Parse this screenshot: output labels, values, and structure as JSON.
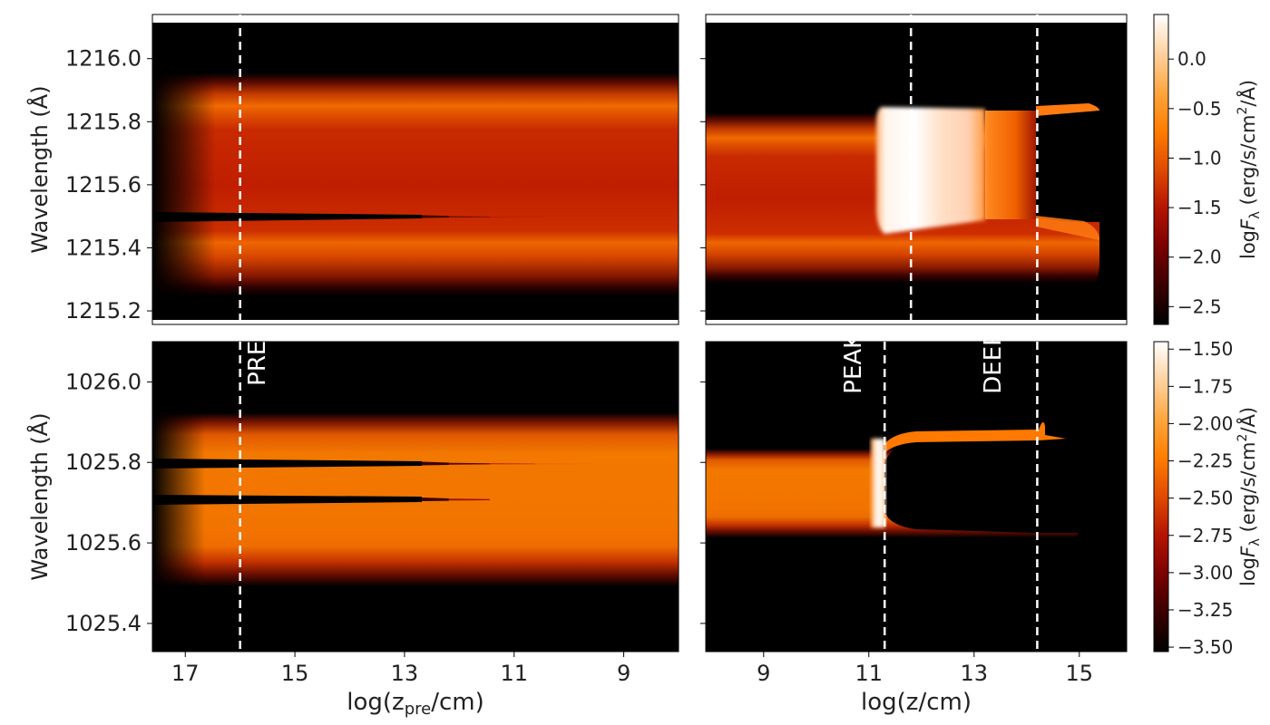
{
  "chart_data": [
    {
      "type": "heatmap",
      "panel": "top-left",
      "xlabel_main": "log(z",
      "xlabel_sub": "pre",
      "xlabel_end": "/cm)",
      "ylabel": "Wavelength (Å)",
      "xlim": [
        17.6,
        8.0
      ],
      "ylim": [
        1215.157,
        1216.14
      ],
      "yticks": [
        1215.2,
        1215.4,
        1215.6,
        1215.8,
        1216.0
      ],
      "ytick_labels": [
        "1215.2",
        "1215.4",
        "1215.6",
        "1215.8",
        "1216.0"
      ],
      "vlines": [
        16.0
      ],
      "annotations": []
    },
    {
      "type": "heatmap",
      "panel": "top-right",
      "xlabel": "log(z/cm)",
      "xlim": [
        7.9,
        15.9
      ],
      "ylim": [
        1215.157,
        1216.14
      ],
      "vlines": [
        11.8,
        14.2
      ],
      "annotations": []
    },
    {
      "type": "heatmap",
      "panel": "bottom-left",
      "xlabel_main": "log(z",
      "xlabel_sub": "pre",
      "xlabel_end": "/cm)",
      "ylabel": "Wavelength (Å)",
      "xlim": [
        17.6,
        8.0
      ],
      "ylim": [
        1025.33,
        1026.1
      ],
      "xticks": [
        17,
        15,
        13,
        11,
        9
      ],
      "xtick_labels": [
        "17",
        "15",
        "13",
        "11",
        "9"
      ],
      "yticks": [
        1025.4,
        1025.6,
        1025.8,
        1026.0
      ],
      "ytick_labels": [
        "1025.4",
        "1025.6",
        "1025.8",
        "1026.0"
      ],
      "vlines": [
        16.0
      ],
      "annotations": [
        {
          "text": "PRE",
          "x": 15.55,
          "y": 1025.99
        }
      ]
    },
    {
      "type": "heatmap",
      "panel": "bottom-right",
      "xlabel": "log(z/cm)",
      "xlim": [
        7.9,
        15.9
      ],
      "ylim": [
        1025.33,
        1026.1
      ],
      "xticks": [
        9,
        11,
        13,
        15
      ],
      "xtick_labels": [
        "9",
        "11",
        "13",
        "15"
      ],
      "vlines": [
        11.3,
        14.2
      ],
      "annotations": [
        {
          "text": "PEAK",
          "x": 10.85,
          "y": 1025.97
        },
        {
          "text": "DEEP",
          "x": 13.5,
          "y": 1025.97
        }
      ]
    }
  ],
  "colorbars": [
    {
      "panel": "top",
      "label": "log F_λ (erg/s/cm²/Å)",
      "label_prefix": "log",
      "label_F": "F",
      "label_lambda": "λ",
      "label_units_a": " (erg/s/cm",
      "label_sup": "2",
      "label_units_b": "/Å)",
      "range": [
        -2.68,
        0.45
      ],
      "ticks": [
        0.0,
        -0.5,
        -1.0,
        -1.5,
        -2.0,
        -2.5
      ],
      "tick_labels": [
        "0.0",
        "−0.5",
        "−1.0",
        "−1.5",
        "−2.0",
        "−2.5"
      ]
    },
    {
      "panel": "bottom",
      "label": "log F_λ (erg/s/cm²/Å)",
      "label_prefix": "log",
      "label_F": "F",
      "label_lambda": "λ",
      "label_units_a": " (erg/s/cm",
      "label_sup": "2",
      "label_units_b": "/Å)",
      "range": [
        -3.53,
        -1.45
      ],
      "ticks": [
        -1.5,
        -1.75,
        -2.0,
        -2.25,
        -2.5,
        -2.75,
        -3.0,
        -3.25,
        -3.5
      ],
      "tick_labels": [
        "−1.50",
        "−1.75",
        "−2.00",
        "−2.25",
        "−2.50",
        "−2.75",
        "−3.00",
        "−3.25",
        "−3.50"
      ]
    }
  ],
  "colormap": [
    "#000000",
    "#3a0000",
    "#7a0000",
    "#b41400",
    "#e04a00",
    "#ff7d00",
    "#ffa640",
    "#ffd2a0",
    "#ffffff"
  ]
}
